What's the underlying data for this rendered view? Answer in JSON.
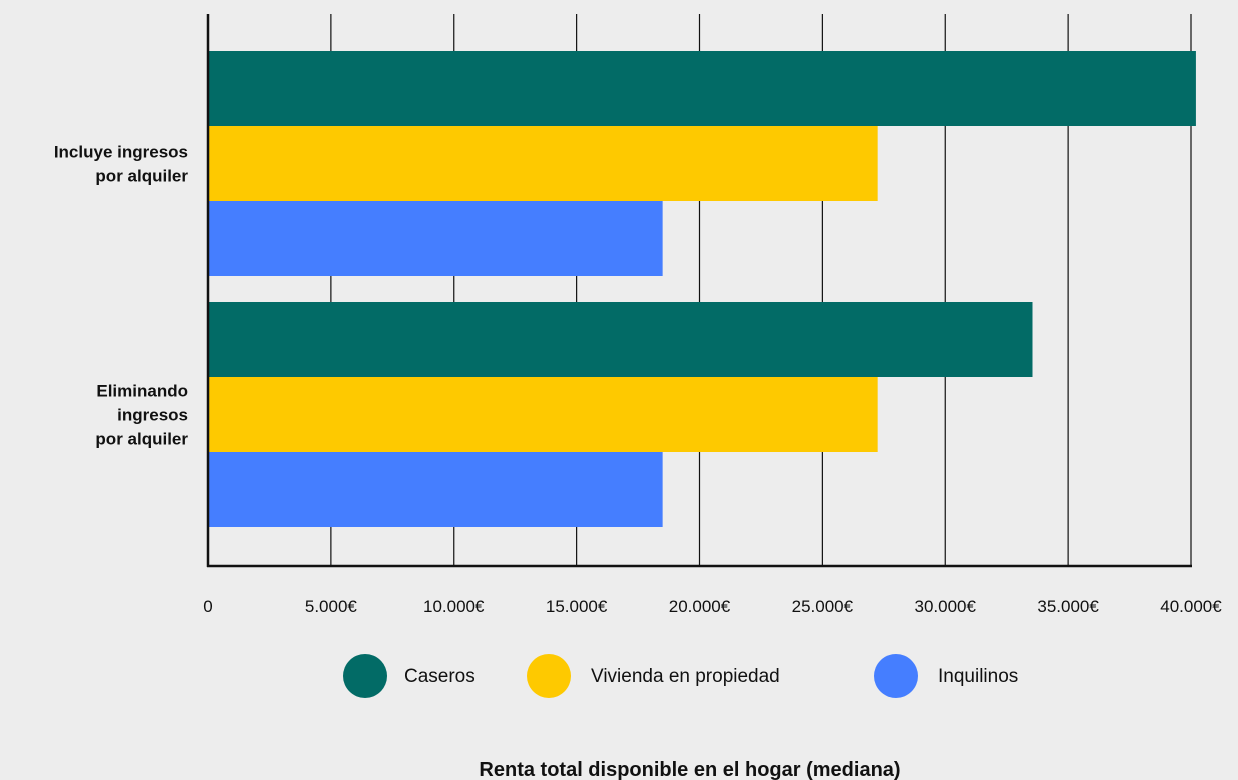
{
  "chart_data": {
    "type": "bar",
    "orientation": "horizontal",
    "title": "",
    "xlabel": "Renta total disponible en el hogar (mediana)",
    "ylabel": "",
    "xlim": [
      0,
      40000
    ],
    "x_ticks": [
      0,
      5000,
      10000,
      15000,
      20000,
      25000,
      30000,
      35000,
      40000
    ],
    "x_tick_labels": [
      "0",
      "5.000€",
      "10.000€",
      "15.000€",
      "20.000€",
      "25.000€",
      "30.000€",
      "35.000€",
      "40.000€"
    ],
    "grid": "vertical",
    "legend_position": "bottom",
    "categories": [
      {
        "lines": [
          "Incluye ingresos",
          "por alquiler"
        ]
      },
      {
        "lines": [
          "Eliminando",
          "ingresos",
          "por alquiler"
        ]
      }
    ],
    "series": [
      {
        "name": "Caseros",
        "color": "#026b66",
        "values": [
          40200,
          33550
        ]
      },
      {
        "name": "Vivienda en propiedad",
        "color": "#fec900",
        "values": [
          27250,
          27250
        ]
      },
      {
        "name": "Inquilinos",
        "color": "#457eff",
        "values": [
          18500,
          18500
        ]
      }
    ]
  }
}
